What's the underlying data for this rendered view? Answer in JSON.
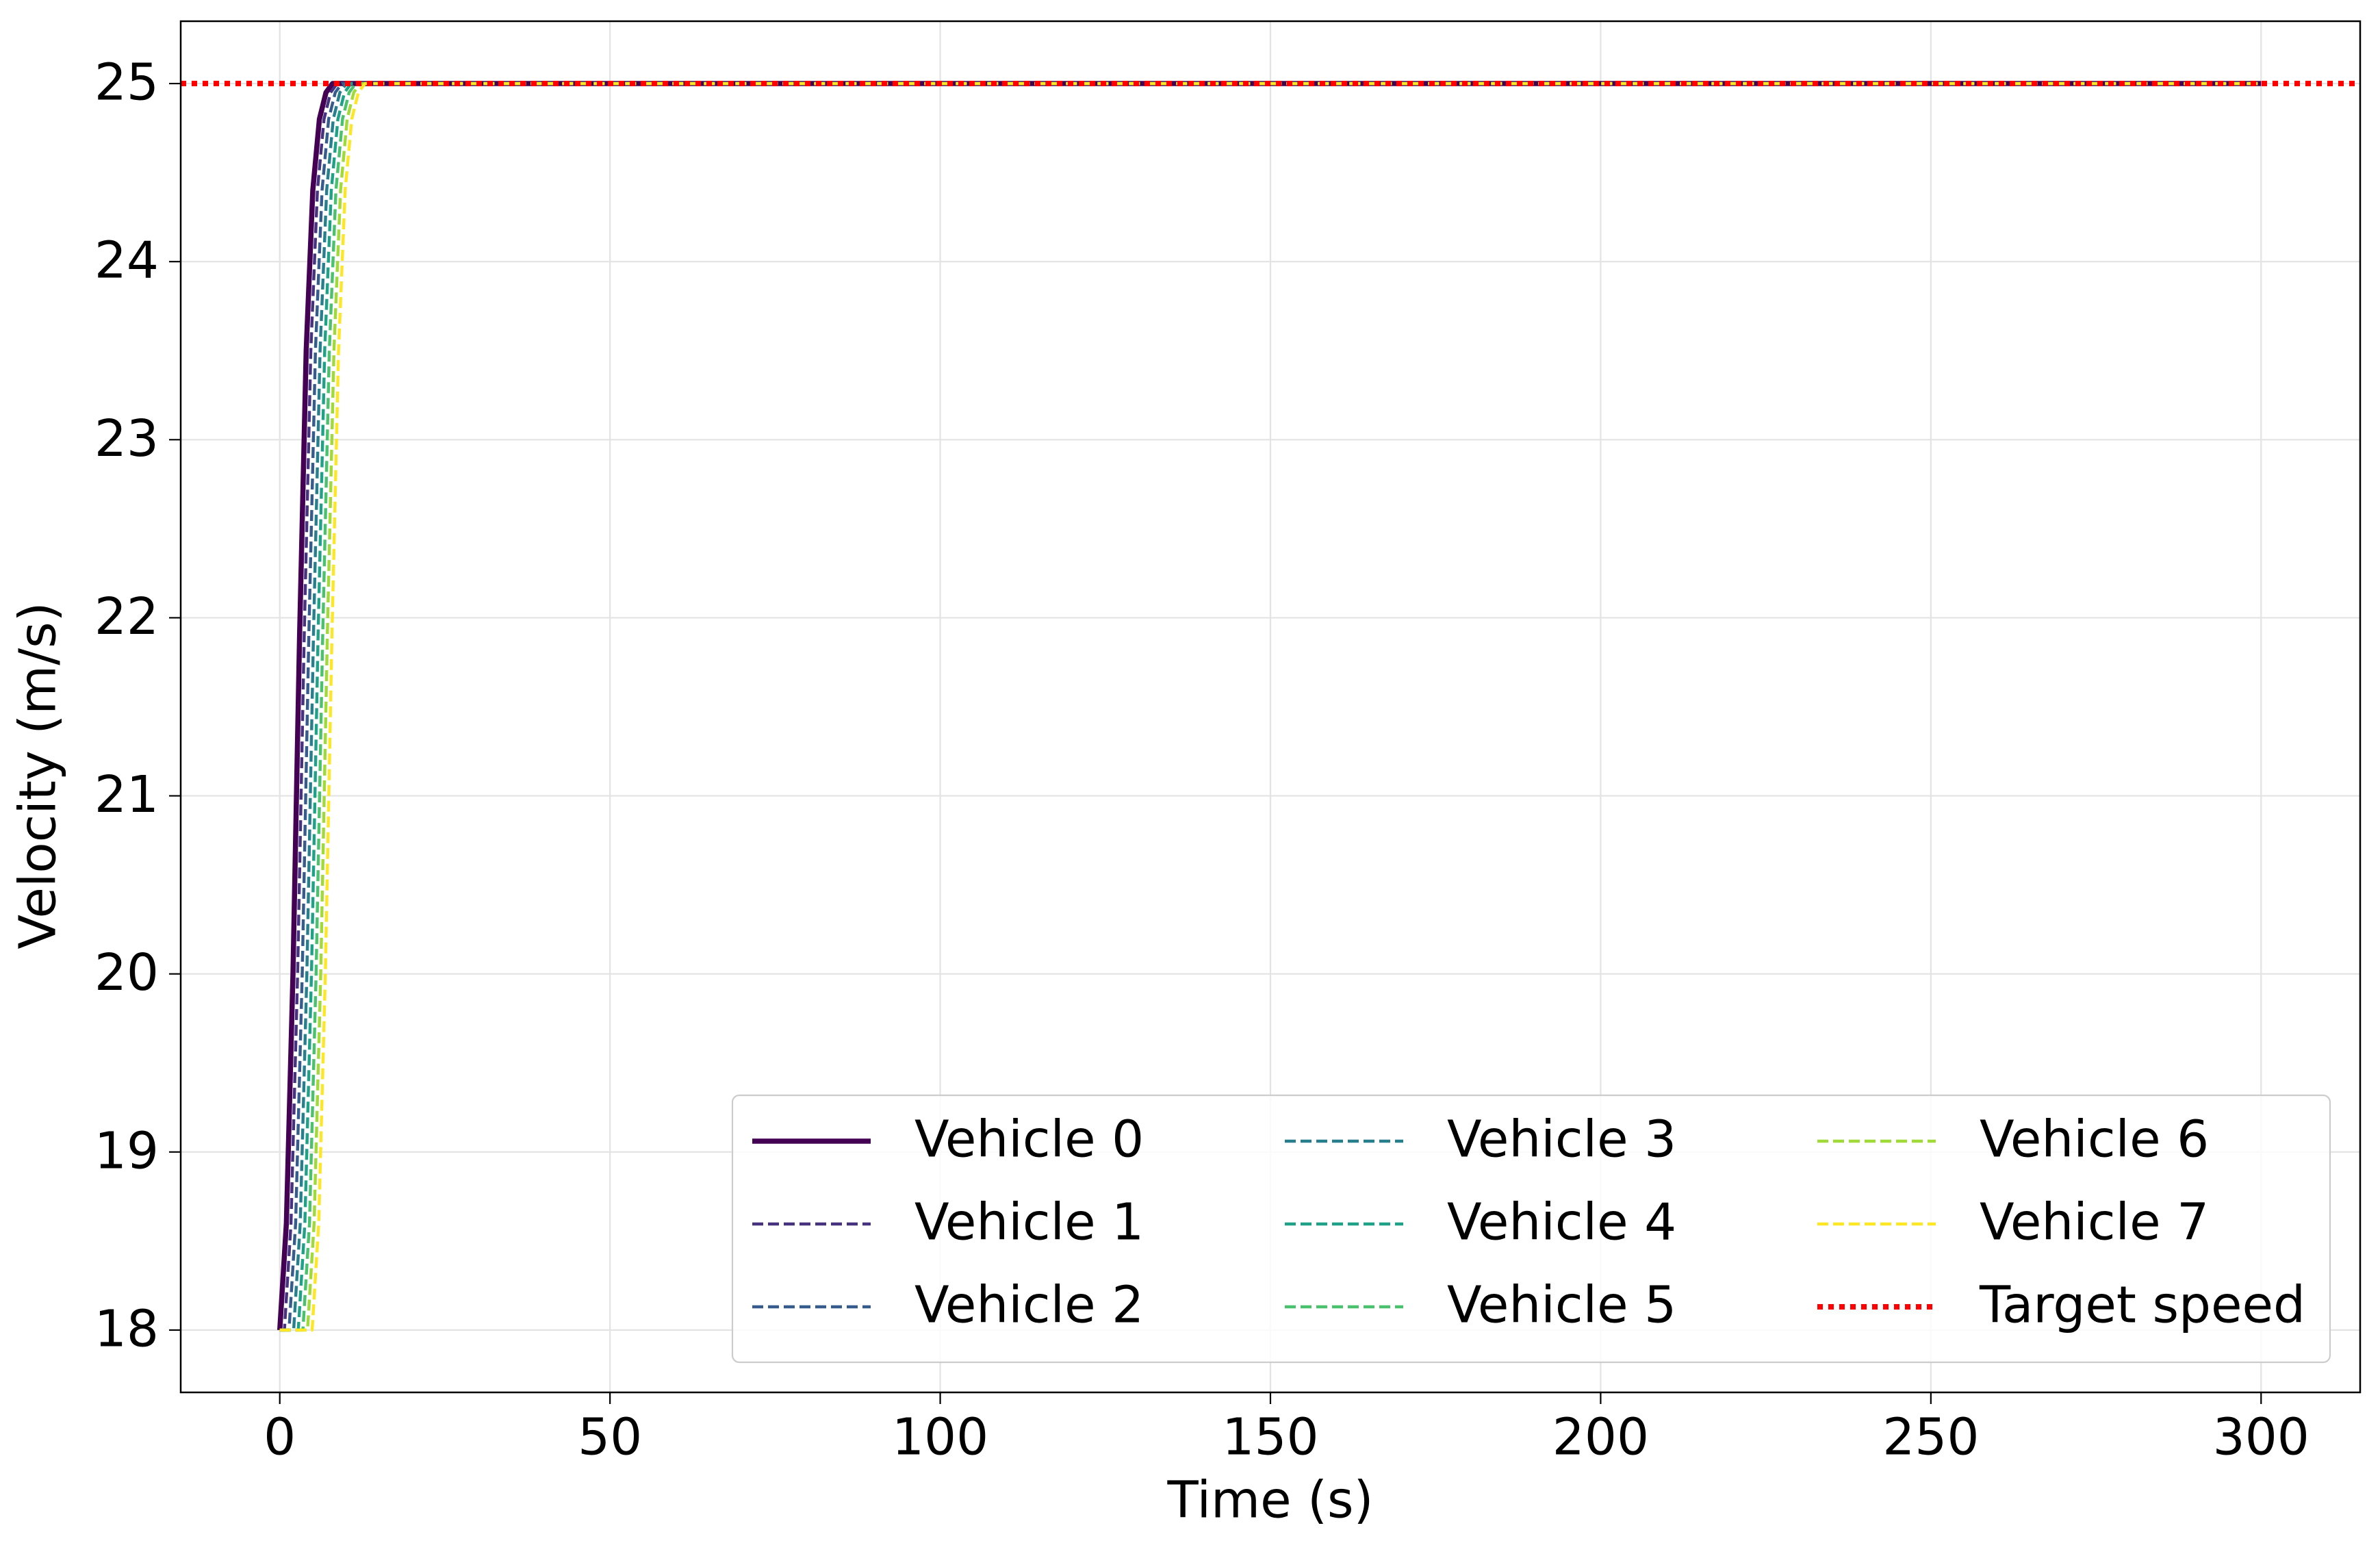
{
  "chart_data": {
    "type": "line",
    "xlabel": "Time (s)",
    "ylabel": "Velocity (m/s)",
    "xlim": [
      -15,
      315
    ],
    "xticks": [
      0,
      50,
      100,
      150,
      200,
      250,
      300
    ],
    "ylim": [
      17.65,
      25.35
    ],
    "yticks": [
      18,
      19,
      20,
      21,
      22,
      23,
      24,
      25
    ],
    "grid": true,
    "legend": "lower right",
    "legend_columns": 3,
    "series": [
      {
        "name": "Vehicle 0",
        "color": "#440154",
        "style": "solid",
        "x": [
          0,
          1,
          2,
          3,
          4,
          5,
          6,
          7,
          8,
          300
        ],
        "values": [
          18,
          18.6,
          20,
          21.9,
          23.5,
          24.4,
          24.8,
          24.95,
          25,
          25
        ]
      },
      {
        "name": "Vehicle 1",
        "color": "#46327e",
        "style": "dashed",
        "x": [
          0,
          0.7,
          1.7,
          2.7,
          3.7,
          4.7,
          5.7,
          6.7,
          7.7,
          8.7,
          300
        ],
        "values": [
          18,
          18,
          18.6,
          20,
          21.9,
          23.5,
          24.4,
          24.8,
          24.95,
          25,
          25
        ]
      },
      {
        "name": "Vehicle 2",
        "color": "#365c8d",
        "style": "dashed",
        "x": [
          0,
          1.4,
          2.4,
          3.4,
          4.4,
          5.4,
          6.4,
          7.4,
          8.4,
          9.4,
          300
        ],
        "values": [
          18,
          18,
          18.6,
          20,
          21.9,
          23.5,
          24.4,
          24.8,
          24.95,
          25,
          25
        ]
      },
      {
        "name": "Vehicle 3",
        "color": "#277f8e",
        "style": "dashed",
        "x": [
          0,
          2.1,
          3.1,
          4.1,
          5.1,
          6.1,
          7.1,
          8.1,
          9.1,
          10.1,
          300
        ],
        "values": [
          18,
          18,
          18.6,
          20,
          21.9,
          23.5,
          24.4,
          24.8,
          24.95,
          25,
          25
        ]
      },
      {
        "name": "Vehicle 4",
        "color": "#1fa187",
        "style": "dashed",
        "x": [
          0,
          2.8,
          3.8,
          4.8,
          5.8,
          6.8,
          7.8,
          8.8,
          9.8,
          10.8,
          300
        ],
        "values": [
          18,
          18,
          18.6,
          20,
          21.9,
          23.5,
          24.4,
          24.8,
          24.95,
          25,
          25
        ]
      },
      {
        "name": "Vehicle 5",
        "color": "#4ac16d",
        "style": "dashed",
        "x": [
          0,
          3.5,
          4.5,
          5.5,
          6.5,
          7.5,
          8.5,
          9.5,
          10.5,
          11.5,
          300
        ],
        "values": [
          18,
          18,
          18.6,
          20,
          21.9,
          23.5,
          24.4,
          24.8,
          24.95,
          25,
          25
        ]
      },
      {
        "name": "Vehicle 6",
        "color": "#a0da39",
        "style": "dashed",
        "x": [
          0,
          4.2,
          5.2,
          6.2,
          7.2,
          8.2,
          9.2,
          10.2,
          11.2,
          12.2,
          300
        ],
        "values": [
          18,
          18,
          18.6,
          20,
          21.9,
          23.5,
          24.4,
          24.8,
          24.95,
          25,
          25
        ]
      },
      {
        "name": "Vehicle 7",
        "color": "#fde725",
        "style": "dashed",
        "x": [
          0,
          4.9,
          5.9,
          6.9,
          7.9,
          8.9,
          9.9,
          10.9,
          11.9,
          12.9,
          300
        ],
        "values": [
          18,
          18,
          18.6,
          20,
          21.9,
          23.5,
          24.4,
          24.8,
          24.95,
          25,
          25
        ]
      },
      {
        "name": "Target speed",
        "color": "#ff0000",
        "style": "hline-dotted",
        "values": [
          25
        ]
      }
    ]
  }
}
